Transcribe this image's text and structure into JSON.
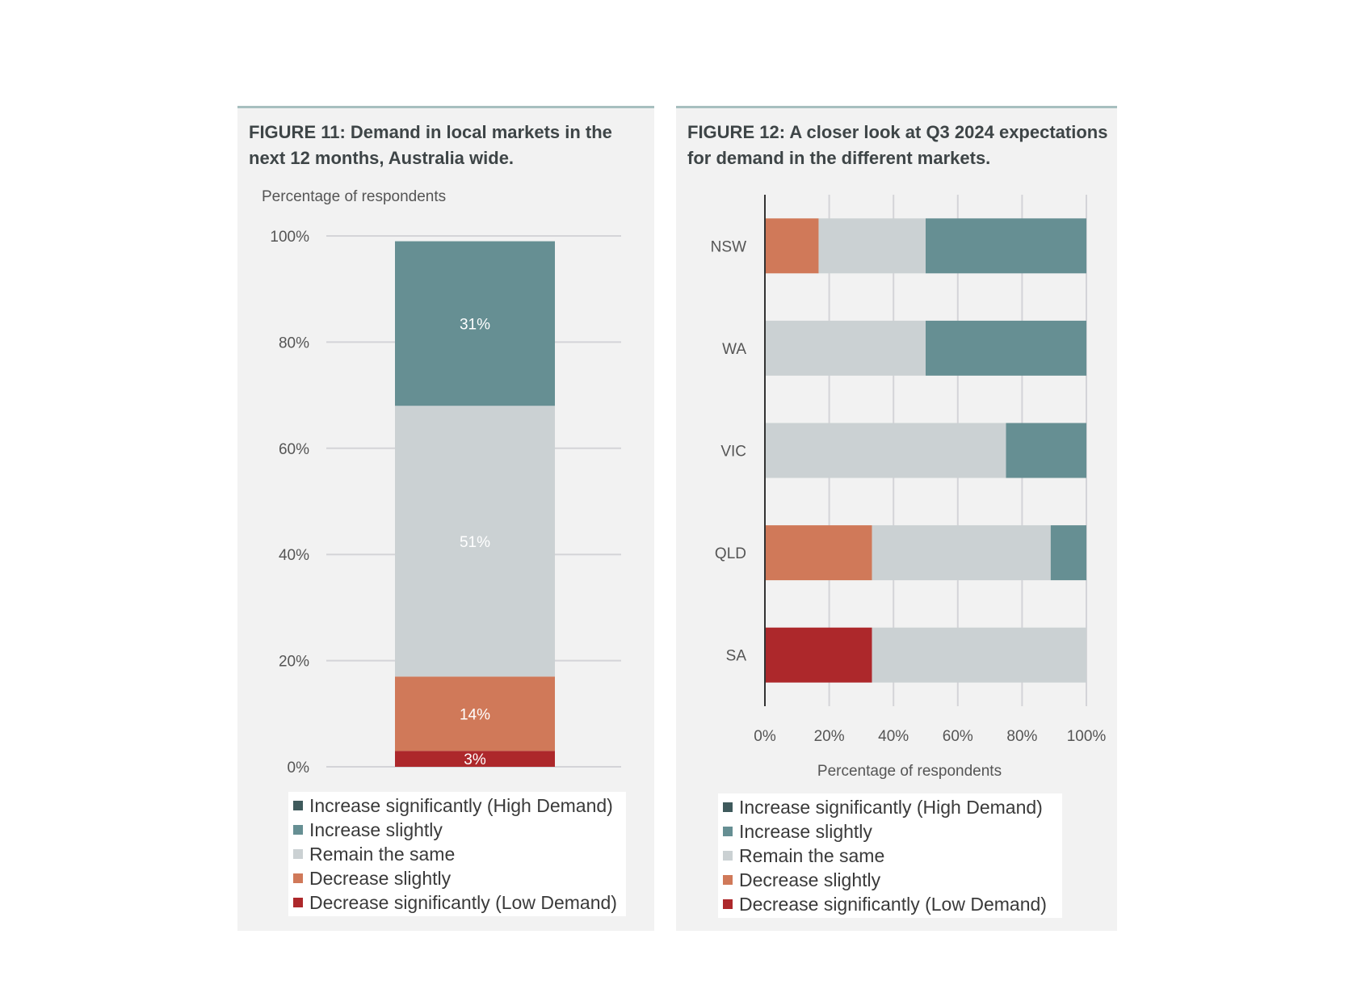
{
  "colors": {
    "increase_significantly": "#3f5a5c",
    "increase_slightly": "#668f93",
    "remain_same": "#cbd1d3",
    "decrease_slightly": "#d07959",
    "decrease_significantly": "#ad282b",
    "grid": "#d4d4d8",
    "axis": "#333333"
  },
  "legend": [
    {
      "key": "increase_significantly",
      "label": "Increase significantly (High Demand)"
    },
    {
      "key": "increase_slightly",
      "label": "Increase slightly"
    },
    {
      "key": "remain_same",
      "label": "Remain the same"
    },
    {
      "key": "decrease_slightly",
      "label": "Decrease slightly"
    },
    {
      "key": "decrease_significantly",
      "label": "Decrease significantly (Low Demand)"
    }
  ],
  "chart_data": [
    {
      "type": "bar",
      "orientation": "vertical",
      "stacked": true,
      "title": "FIGURE 11: Demand in local markets in the next 12 months, Australia wide.",
      "ylabel": "Percentage of respondents",
      "ylim": [
        0,
        100
      ],
      "yticks": [
        "0%",
        "20%",
        "40%",
        "60%",
        "80%",
        "100%"
      ],
      "categories": [
        ""
      ],
      "series": [
        {
          "name": "Decrease significantly (Low Demand)",
          "key": "decrease_significantly",
          "values": [
            3
          ],
          "label": "3%"
        },
        {
          "name": "Decrease slightly",
          "key": "decrease_slightly",
          "values": [
            14
          ],
          "label": "14%"
        },
        {
          "name": "Remain the same",
          "key": "remain_same",
          "values": [
            51
          ],
          "label": "51%"
        },
        {
          "name": "Increase slightly",
          "key": "increase_slightly",
          "values": [
            31
          ],
          "label": "31%"
        },
        {
          "name": "Increase significantly (High Demand)",
          "key": "increase_significantly",
          "values": [
            0
          ],
          "label": ""
        }
      ],
      "grid": true,
      "legend_position": "bottom"
    },
    {
      "type": "bar",
      "orientation": "horizontal",
      "stacked": true,
      "title": "FIGURE 12: A closer look at Q3 2024 expectations for demand in the different markets.",
      "xlabel": "Percentage of respondents",
      "xlim": [
        0,
        100
      ],
      "xticks": [
        "0%",
        "20%",
        "40%",
        "60%",
        "80%",
        "100%"
      ],
      "categories": [
        "NSW",
        "WA",
        "VIC",
        "QLD",
        "SA"
      ],
      "series": [
        {
          "name": "Decrease significantly (Low Demand)",
          "key": "decrease_significantly",
          "values": [
            0,
            0,
            0,
            0,
            33.3
          ]
        },
        {
          "name": "Decrease slightly",
          "key": "decrease_slightly",
          "values": [
            16.7,
            0,
            0,
            33.3,
            0
          ]
        },
        {
          "name": "Remain the same",
          "key": "remain_same",
          "values": [
            33.3,
            50,
            75,
            55.6,
            66.7
          ]
        },
        {
          "name": "Increase slightly",
          "key": "increase_slightly",
          "values": [
            50,
            50,
            25,
            11.1,
            0
          ]
        },
        {
          "name": "Increase significantly (High Demand)",
          "key": "increase_significantly",
          "values": [
            0,
            0,
            0,
            0,
            0
          ]
        }
      ],
      "grid": true,
      "legend_position": "bottom"
    }
  ]
}
